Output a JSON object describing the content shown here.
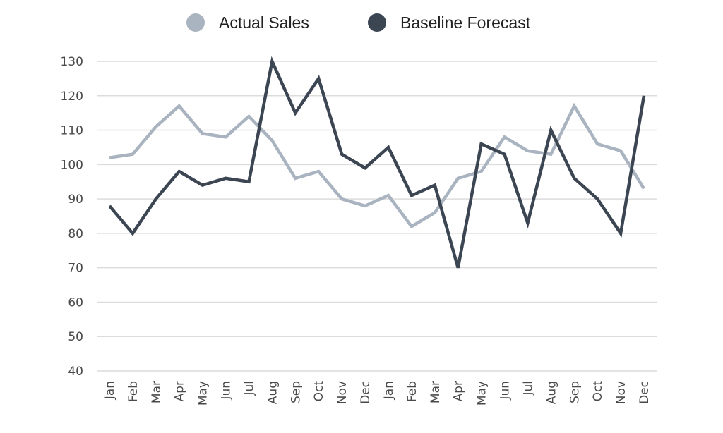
{
  "chart_data": {
    "type": "line",
    "title": "",
    "xlabel": "",
    "ylabel": "",
    "ylim": [
      40,
      130
    ],
    "yticks": [
      40,
      50,
      60,
      70,
      80,
      90,
      100,
      110,
      120,
      130
    ],
    "grid": true,
    "legend_position": "top-center",
    "categories": [
      "Jan",
      "Feb",
      "Mar",
      "Apr",
      "May",
      "Jun",
      "Jul",
      "Aug",
      "Sep",
      "Oct",
      "Nov",
      "Dec",
      "Jan",
      "Feb",
      "Mar",
      "Apr",
      "May",
      "Jun",
      "Jul",
      "Aug",
      "Sep",
      "Oct",
      "Nov",
      "Dec"
    ],
    "series": [
      {
        "name": "Actual Sales",
        "color": "#a9b4c0",
        "values": [
          102,
          103,
          111,
          117,
          109,
          108,
          114,
          107,
          96,
          98,
          90,
          88,
          91,
          82,
          86,
          96,
          98,
          108,
          104,
          103,
          117,
          106,
          104,
          93
        ]
      },
      {
        "name": "Baseline Forecast",
        "color": "#3c4653",
        "values": [
          88,
          80,
          90,
          98,
          94,
          96,
          95,
          130,
          115,
          125,
          103,
          99,
          105,
          91,
          94,
          70,
          106,
          103,
          83,
          110,
          96,
          90,
          80,
          120
        ]
      }
    ]
  }
}
